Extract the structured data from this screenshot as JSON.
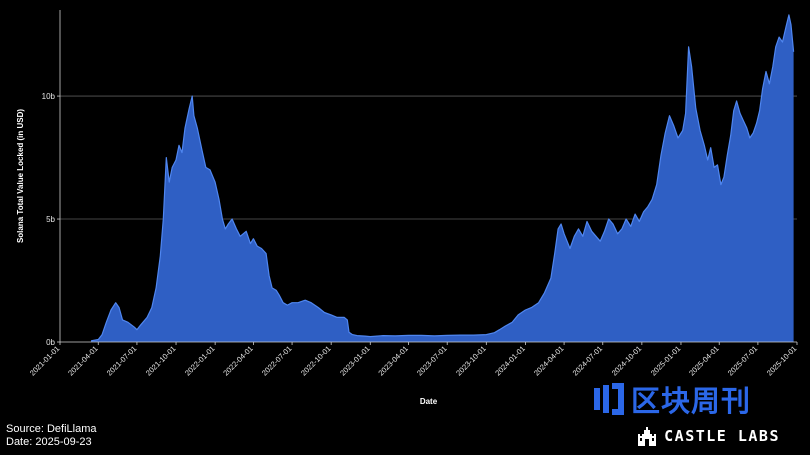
{
  "chart_data": {
    "type": "area",
    "title": "",
    "xlabel": "Date",
    "ylabel": "Solana Total Value Locked (in USD)",
    "x_range": [
      "2021-01-01",
      "2025-10-01"
    ],
    "ylim": [
      0,
      13.5
    ],
    "y_ticks": [
      {
        "value": 0,
        "label": "0b"
      },
      {
        "value": 5,
        "label": "5b"
      },
      {
        "value": 10,
        "label": "10b"
      }
    ],
    "x_ticks": [
      "2021-01-01",
      "2021-04-01",
      "2021-07-01",
      "2021-10-01",
      "2022-01-01",
      "2022-04-01",
      "2022-07-01",
      "2022-10-01",
      "2023-01-01",
      "2023-04-01",
      "2023-07-01",
      "2023-10-01",
      "2024-01-01",
      "2024-04-01",
      "2024-07-01",
      "2024-10-01",
      "2025-01-01",
      "2025-04-01",
      "2025-07-01",
      "2025-10-01"
    ],
    "grid": "horizontal",
    "fill_color": "#2f5fc4",
    "line_color": "#4f86f0",
    "series": [
      {
        "name": "",
        "unit": "billion USD",
        "points": [
          [
            "2021-03-15",
            0.05
          ],
          [
            "2021-04-01",
            0.1
          ],
          [
            "2021-04-10",
            0.3
          ],
          [
            "2021-04-20",
            0.8
          ],
          [
            "2021-05-01",
            1.3
          ],
          [
            "2021-05-12",
            1.6
          ],
          [
            "2021-05-20",
            1.4
          ],
          [
            "2021-05-28",
            0.9
          ],
          [
            "2021-06-10",
            0.8
          ],
          [
            "2021-06-25",
            0.6
          ],
          [
            "2021-07-01",
            0.5
          ],
          [
            "2021-07-10",
            0.7
          ],
          [
            "2021-07-25",
            1.0
          ],
          [
            "2021-08-05",
            1.4
          ],
          [
            "2021-08-15",
            2.2
          ],
          [
            "2021-08-25",
            3.5
          ],
          [
            "2021-09-01",
            5.0
          ],
          [
            "2021-09-08",
            7.5
          ],
          [
            "2021-09-15",
            6.5
          ],
          [
            "2021-09-22",
            7.1
          ],
          [
            "2021-10-01",
            7.4
          ],
          [
            "2021-10-08",
            8.0
          ],
          [
            "2021-10-15",
            7.7
          ],
          [
            "2021-10-22",
            8.7
          ],
          [
            "2021-11-01",
            9.5
          ],
          [
            "2021-11-08",
            10.0
          ],
          [
            "2021-11-12",
            9.2
          ],
          [
            "2021-11-20",
            8.7
          ],
          [
            "2021-12-01",
            7.8
          ],
          [
            "2021-12-10",
            7.1
          ],
          [
            "2021-12-20",
            7.0
          ],
          [
            "2022-01-01",
            6.5
          ],
          [
            "2022-01-10",
            5.8
          ],
          [
            "2022-01-18",
            5.0
          ],
          [
            "2022-01-25",
            4.6
          ],
          [
            "2022-02-01",
            4.8
          ],
          [
            "2022-02-10",
            5.0
          ],
          [
            "2022-02-20",
            4.6
          ],
          [
            "2022-03-01",
            4.3
          ],
          [
            "2022-03-15",
            4.5
          ],
          [
            "2022-03-25",
            4.0
          ],
          [
            "2022-04-01",
            4.2
          ],
          [
            "2022-04-10",
            3.9
          ],
          [
            "2022-04-20",
            3.8
          ],
          [
            "2022-05-01",
            3.6
          ],
          [
            "2022-05-08",
            2.7
          ],
          [
            "2022-05-15",
            2.2
          ],
          [
            "2022-05-25",
            2.1
          ],
          [
            "2022-06-01",
            1.9
          ],
          [
            "2022-06-10",
            1.6
          ],
          [
            "2022-06-20",
            1.5
          ],
          [
            "2022-07-01",
            1.6
          ],
          [
            "2022-07-15",
            1.6
          ],
          [
            "2022-08-01",
            1.7
          ],
          [
            "2022-08-15",
            1.6
          ],
          [
            "2022-09-01",
            1.4
          ],
          [
            "2022-09-15",
            1.2
          ],
          [
            "2022-10-01",
            1.1
          ],
          [
            "2022-10-15",
            1.0
          ],
          [
            "2022-11-01",
            1.0
          ],
          [
            "2022-11-08",
            0.9
          ],
          [
            "2022-11-12",
            0.4
          ],
          [
            "2022-11-20",
            0.3
          ],
          [
            "2022-12-01",
            0.26
          ],
          [
            "2022-12-20",
            0.24
          ],
          [
            "2023-01-01",
            0.22
          ],
          [
            "2023-02-01",
            0.26
          ],
          [
            "2023-03-01",
            0.25
          ],
          [
            "2023-04-01",
            0.27
          ],
          [
            "2023-05-01",
            0.27
          ],
          [
            "2023-06-01",
            0.25
          ],
          [
            "2023-07-01",
            0.27
          ],
          [
            "2023-08-01",
            0.28
          ],
          [
            "2023-09-01",
            0.28
          ],
          [
            "2023-10-01",
            0.3
          ],
          [
            "2023-10-20",
            0.38
          ],
          [
            "2023-11-01",
            0.5
          ],
          [
            "2023-11-15",
            0.65
          ],
          [
            "2023-12-01",
            0.8
          ],
          [
            "2023-12-15",
            1.1
          ],
          [
            "2024-01-01",
            1.3
          ],
          [
            "2024-01-15",
            1.4
          ],
          [
            "2024-02-01",
            1.6
          ],
          [
            "2024-02-15",
            2.0
          ],
          [
            "2024-03-01",
            2.6
          ],
          [
            "2024-03-10",
            3.6
          ],
          [
            "2024-03-18",
            4.6
          ],
          [
            "2024-03-25",
            4.8
          ],
          [
            "2024-04-01",
            4.4
          ],
          [
            "2024-04-15",
            3.8
          ],
          [
            "2024-04-25",
            4.3
          ],
          [
            "2024-05-05",
            4.6
          ],
          [
            "2024-05-15",
            4.3
          ],
          [
            "2024-05-25",
            4.9
          ],
          [
            "2024-06-05",
            4.5
          ],
          [
            "2024-06-15",
            4.3
          ],
          [
            "2024-06-25",
            4.1
          ],
          [
            "2024-07-05",
            4.5
          ],
          [
            "2024-07-15",
            5.0
          ],
          [
            "2024-07-25",
            4.8
          ],
          [
            "2024-08-05",
            4.4
          ],
          [
            "2024-08-15",
            4.6
          ],
          [
            "2024-08-25",
            5.0
          ],
          [
            "2024-09-05",
            4.7
          ],
          [
            "2024-09-15",
            5.2
          ],
          [
            "2024-09-25",
            4.9
          ],
          [
            "2024-10-05",
            5.3
          ],
          [
            "2024-10-15",
            5.5
          ],
          [
            "2024-10-25",
            5.8
          ],
          [
            "2024-11-05",
            6.4
          ],
          [
            "2024-11-15",
            7.6
          ],
          [
            "2024-11-25",
            8.5
          ],
          [
            "2024-12-05",
            9.2
          ],
          [
            "2024-12-15",
            8.8
          ],
          [
            "2024-12-25",
            8.3
          ],
          [
            "2025-01-05",
            8.6
          ],
          [
            "2025-01-12",
            9.3
          ],
          [
            "2025-01-19",
            12.0
          ],
          [
            "2025-01-26",
            11.2
          ],
          [
            "2025-02-05",
            9.5
          ],
          [
            "2025-02-15",
            8.6
          ],
          [
            "2025-02-25",
            8.0
          ],
          [
            "2025-03-05",
            7.4
          ],
          [
            "2025-03-12",
            7.9
          ],
          [
            "2025-03-20",
            7.1
          ],
          [
            "2025-03-28",
            7.2
          ],
          [
            "2025-04-05",
            6.4
          ],
          [
            "2025-04-12",
            6.7
          ],
          [
            "2025-04-20",
            7.6
          ],
          [
            "2025-04-28",
            8.4
          ],
          [
            "2025-05-05",
            9.4
          ],
          [
            "2025-05-12",
            9.8
          ],
          [
            "2025-05-20",
            9.3
          ],
          [
            "2025-05-28",
            9.0
          ],
          [
            "2025-06-05",
            8.7
          ],
          [
            "2025-06-12",
            8.3
          ],
          [
            "2025-06-20",
            8.5
          ],
          [
            "2025-06-28",
            8.9
          ],
          [
            "2025-07-05",
            9.4
          ],
          [
            "2025-07-12",
            10.3
          ],
          [
            "2025-07-20",
            11.0
          ],
          [
            "2025-07-28",
            10.5
          ],
          [
            "2025-08-05",
            11.2
          ],
          [
            "2025-08-12",
            12.0
          ],
          [
            "2025-08-20",
            12.4
          ],
          [
            "2025-08-28",
            12.2
          ],
          [
            "2025-09-05",
            12.8
          ],
          [
            "2025-09-12",
            13.3
          ],
          [
            "2025-09-17",
            12.9
          ],
          [
            "2025-09-23",
            11.8
          ]
        ]
      }
    ]
  },
  "footer": {
    "source": "Source: DefiLlama",
    "date": "Date: 2025-09-23"
  },
  "watermark": {
    "text": "区块周刊",
    "color": "#2b67e8",
    "icon": "bars-logo-icon"
  },
  "brand": {
    "text": "CASTLE LABS",
    "icon": "castle-icon"
  }
}
